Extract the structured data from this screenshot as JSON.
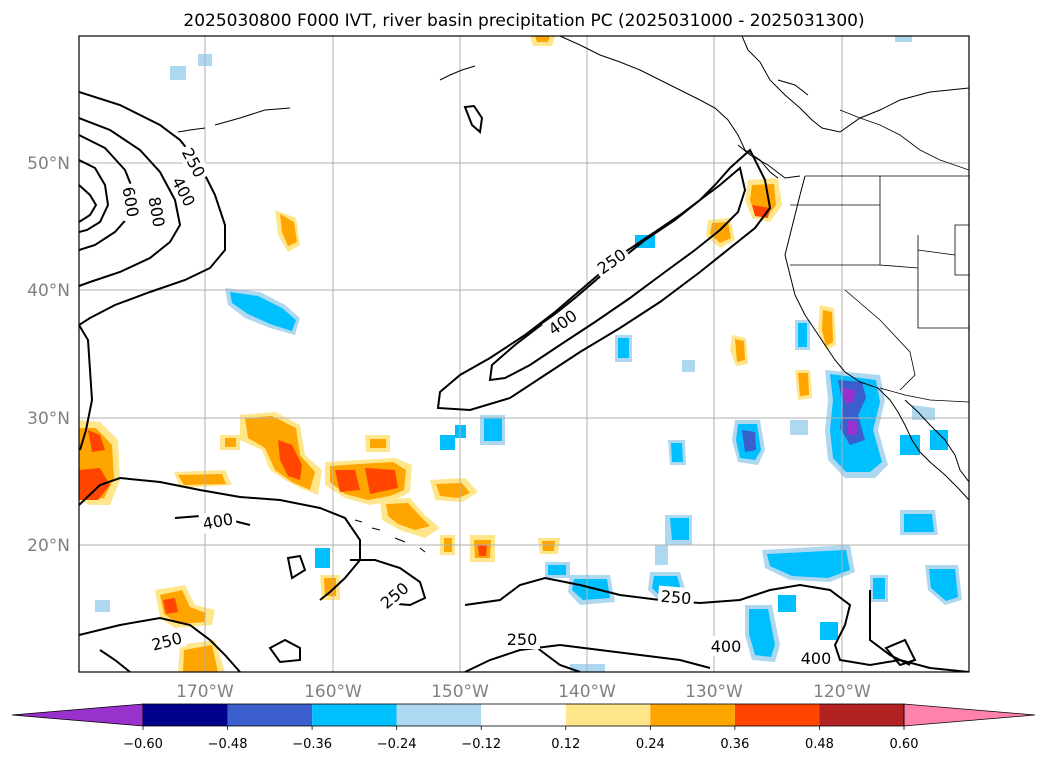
{
  "chart_data": {
    "type": "map",
    "title": "2025030800 F000 IVT, river basin precipitation PC (2025031000 - 2025031300)",
    "lat_ticks": [
      "50°N",
      "40°N",
      "30°N",
      "20°N"
    ],
    "lon_ticks": [
      "170°W",
      "160°W",
      "150°W",
      "140°W",
      "130°W",
      "120°W"
    ],
    "contour_levels": [
      250,
      400,
      600,
      800
    ],
    "contour_labels": [
      "250",
      "400",
      "600",
      "800",
      "250",
      "400",
      "400",
      "250",
      "250",
      "250",
      "400",
      "400",
      "250"
    ],
    "colorbar": {
      "extend": "both",
      "ticks": [
        "−0.60",
        "−0.48",
        "−0.36",
        "−0.24",
        "−0.12",
        "0.12",
        "0.24",
        "0.36",
        "0.48",
        "0.60"
      ],
      "colors": [
        "#9932cc",
        "#00008b",
        "#3a5fcd",
        "#00bfff",
        "#add8f0",
        "#ffffff",
        "#ffe68a",
        "#ffa500",
        "#ff4500",
        "#b22222",
        "#ff82ab"
      ]
    },
    "grid": true,
    "legend": "bottom"
  }
}
